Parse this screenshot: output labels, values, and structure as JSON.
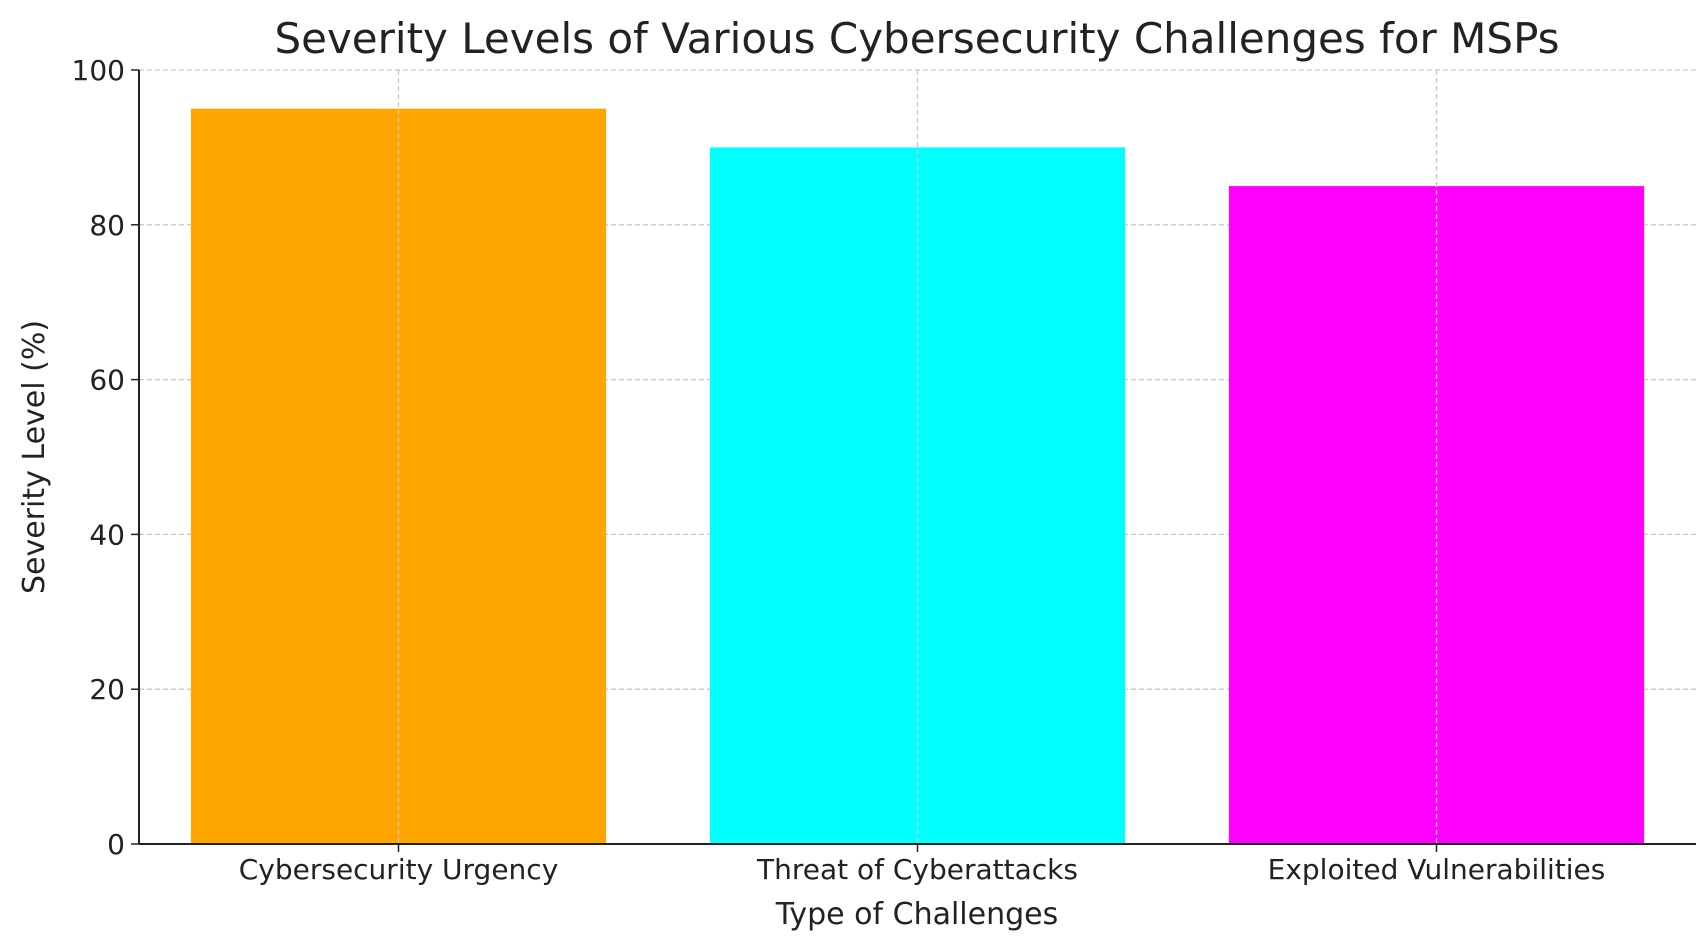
{
  "chart_data": {
    "type": "bar",
    "title": "Severity Levels of Various Cybersecurity Challenges for MSPs",
    "xlabel": "Type of Challenges",
    "ylabel": "Severity Level (%)",
    "categories": [
      "Cybersecurity Urgency",
      "Threat of Cyberattacks",
      "Exploited Vulnerabilities"
    ],
    "values": [
      95,
      90,
      85
    ],
    "colors": [
      "#ffa500",
      "#00ffff",
      "#ff00ff"
    ],
    "ylim": [
      0,
      100
    ],
    "yticks": [
      "0",
      "20",
      "40",
      "60",
      "80",
      "100"
    ],
    "grid": true,
    "grid_style": "dashed"
  }
}
